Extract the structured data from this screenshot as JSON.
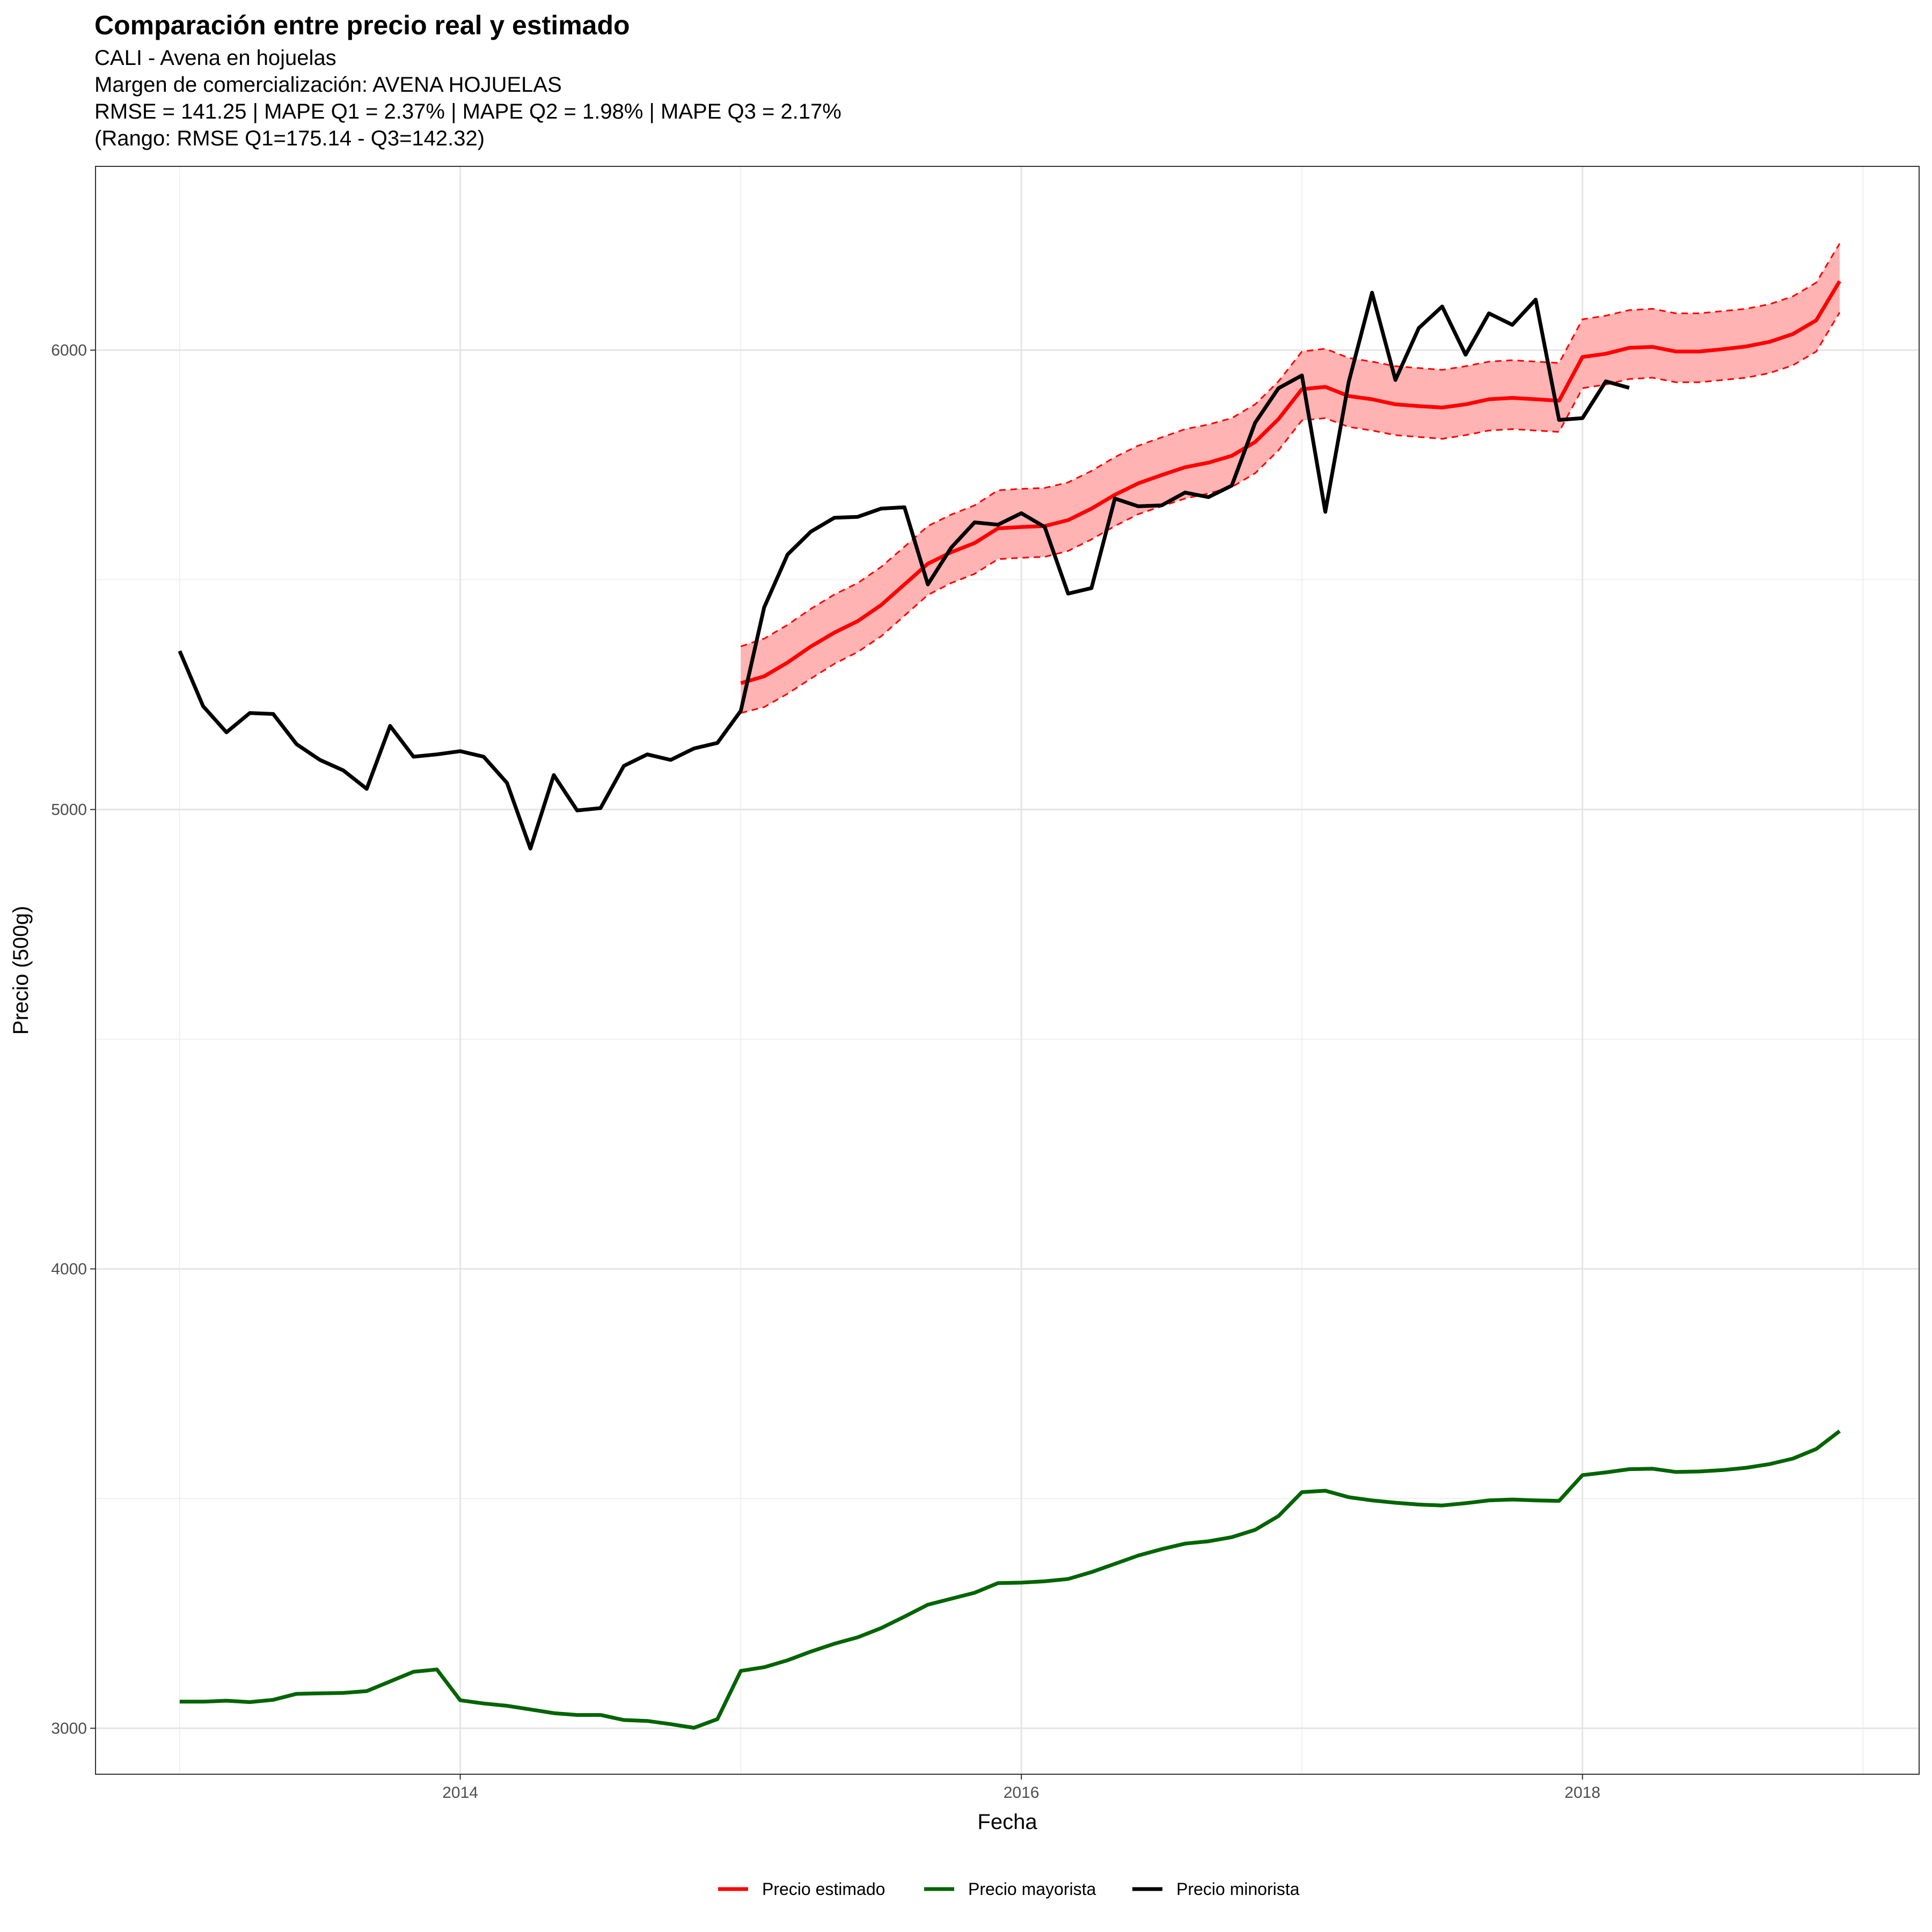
{
  "header": {
    "title": "Comparación entre precio real y estimado",
    "subtitle_lines": [
      "CALI - Avena en hojuelas",
      "Margen de comercialización: AVENA HOJUELAS",
      "RMSE = 141.25 | MAPE Q1 = 2.37% | MAPE Q2 = 1.98% | MAPE Q3 = 2.17%",
      "(Rango: RMSE Q1=175.14 - Q3=142.32)"
    ]
  },
  "chart_data": {
    "type": "line",
    "xlabel": "Fecha",
    "ylabel": "Precio (500g)",
    "xlim": [
      2012.7,
      2019.2
    ],
    "ylim": [
      2900,
      6400
    ],
    "x_ticks": [
      2014,
      2016,
      2018
    ],
    "x_tick_labels": [
      "2014",
      "2016",
      "2018"
    ],
    "y_ticks": [
      3000,
      4000,
      5000,
      6000
    ],
    "y_tick_labels": [
      "3000",
      "4000",
      "5000",
      "6000"
    ],
    "grid": true,
    "legend_position": "bottom",
    "colors": {
      "estimado": "#ff0000",
      "band_fill": "#ffb3b3",
      "mayorista": "#006400",
      "minorista": "#000000"
    },
    "series": [
      {
        "name": "Precio minorista",
        "color": "#000000",
        "x_start": 2013.0,
        "step": 0.0833333,
        "values": [
          5345,
          5225,
          5168,
          5210,
          5208,
          5142,
          5108,
          5085,
          5045,
          5182,
          5115,
          5120,
          5127,
          5115,
          5058,
          4915,
          5075,
          4998,
          5003,
          5095,
          5120,
          5108,
          5133,
          5145,
          5215,
          5440,
          5555,
          5605,
          5635,
          5637,
          5655,
          5658,
          5490,
          5570,
          5625,
          5620,
          5645,
          5615,
          5470,
          5482,
          5677,
          5660,
          5662,
          5690,
          5680,
          5705,
          5842,
          5917,
          5945,
          5648,
          5930,
          6125,
          5935,
          6048,
          6095,
          5990,
          6080,
          6055,
          6110,
          5848,
          5852,
          5932,
          5918
        ]
      },
      {
        "name": "Precio estimado",
        "color": "#ff0000",
        "x_start": 2015.0,
        "step": 0.0833333,
        "values": [
          5275,
          5290,
          5320,
          5355,
          5385,
          5410,
          5445,
          5490,
          5535,
          5560,
          5580,
          5612,
          5615,
          5617,
          5630,
          5655,
          5685,
          5710,
          5728,
          5745,
          5755,
          5770,
          5800,
          5850,
          5915,
          5920,
          5900,
          5893,
          5882,
          5878,
          5875,
          5882,
          5893,
          5896,
          5893,
          5890,
          5985,
          5992,
          6005,
          6007,
          5997,
          5997,
          6002,
          6008,
          6018,
          6035,
          6065,
          6150
        ]
      },
      {
        "name": "Banda inferior",
        "color": "#ff0000",
        "x_start": 2015.0,
        "step": 0.0833333,
        "values": [
          5210,
          5223,
          5252,
          5285,
          5317,
          5343,
          5377,
          5422,
          5467,
          5493,
          5513,
          5545,
          5548,
          5550,
          5563,
          5588,
          5617,
          5643,
          5660,
          5677,
          5688,
          5702,
          5732,
          5782,
          5847,
          5852,
          5833,
          5825,
          5815,
          5811,
          5807,
          5815,
          5825,
          5828,
          5825,
          5822,
          5917,
          5925,
          5937,
          5940,
          5930,
          5930,
          5935,
          5940,
          5950,
          5967,
          5997,
          6082
        ]
      },
      {
        "name": "Banda superior",
        "color": "#ff0000",
        "x_start": 2015.0,
        "step": 0.0833333,
        "values": [
          5355,
          5372,
          5402,
          5437,
          5468,
          5493,
          5528,
          5572,
          5617,
          5642,
          5662,
          5695,
          5698,
          5700,
          5712,
          5737,
          5767,
          5792,
          5810,
          5828,
          5838,
          5852,
          5882,
          5932,
          5997,
          6003,
          5983,
          5975,
          5965,
          5961,
          5957,
          5965,
          5975,
          5978,
          5975,
          5972,
          6067,
          6075,
          6087,
          6090,
          6080,
          6080,
          6085,
          6090,
          6100,
          6117,
          6147,
          6232
        ]
      },
      {
        "name": "Precio mayorista",
        "color": "#006400",
        "x_start": 2013.0,
        "step": 0.0833333,
        "values": [
          3058,
          3058,
          3060,
          3057,
          3062,
          3075,
          3076,
          3077,
          3081,
          3102,
          3123,
          3128,
          3061,
          3054,
          3049,
          3041,
          3033,
          3029,
          3029,
          3018,
          3016,
          3009,
          3001,
          3020,
          3125,
          3133,
          3148,
          3167,
          3184,
          3198,
          3218,
          3243,
          3269,
          3282,
          3295,
          3316,
          3317,
          3320,
          3325,
          3340,
          3358,
          3376,
          3390,
          3402,
          3407,
          3416,
          3432,
          3462,
          3514,
          3517,
          3503,
          3496,
          3491,
          3487,
          3485,
          3490,
          3496,
          3498,
          3496,
          3495,
          3551,
          3557,
          3564,
          3565,
          3558,
          3559,
          3562,
          3567,
          3575,
          3587,
          3608,
          3647
        ]
      }
    ],
    "legend": [
      {
        "label": "Precio estimado",
        "color": "#ff0000"
      },
      {
        "label": "Precio mayorista",
        "color": "#006400"
      },
      {
        "label": "Precio minorista",
        "color": "#000000"
      }
    ]
  }
}
